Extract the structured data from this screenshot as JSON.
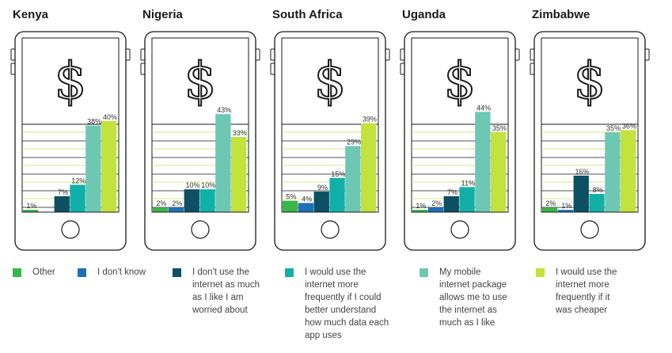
{
  "chart_data": {
    "type": "bar",
    "ylim": [
      0,
      50
    ],
    "categories": [
      "Other",
      "I don't know",
      "I don't use the internet as much as I like I am worried about",
      "I would use the internet more frequently if I could better understand how much data each app uses",
      "My mobile internet package allows me to use the internet as much as I like",
      "I would use the internet more frequently if it was cheaper"
    ],
    "category_colors": [
      "#39b54a",
      "#1f6fb7",
      "#0d4f63",
      "#10b0a9",
      "#6dc8b3",
      "#c3e23c"
    ],
    "panels": [
      {
        "country": "Kenya",
        "values": [
          1,
          0,
          7,
          12,
          38,
          40
        ],
        "labels": [
          "1%",
          "",
          "7%",
          "12%",
          "38%",
          "40%"
        ]
      },
      {
        "country": "Nigeria",
        "values": [
          2,
          2,
          10,
          10,
          43,
          33
        ],
        "labels": [
          "2%",
          "2%",
          "10%",
          "10%",
          "43%",
          "33%"
        ]
      },
      {
        "country": "South Africa",
        "values": [
          5,
          4,
          9,
          15,
          29,
          39
        ],
        "labels": [
          "5%",
          "4%",
          "9%",
          "15%",
          "29%",
          "39%"
        ]
      },
      {
        "country": "Uganda",
        "values": [
          1,
          2,
          7,
          11,
          44,
          35
        ],
        "labels": [
          "1%",
          "2%",
          "7%",
          "11%",
          "44%",
          "35%"
        ]
      },
      {
        "country": "Zimbabwe",
        "values": [
          2,
          1,
          16,
          8,
          35,
          36
        ],
        "labels": [
          "2%",
          "1%",
          "16%",
          "8%",
          "35%",
          "36%"
        ]
      }
    ],
    "legend": {
      "placement": "bottom",
      "items": [
        {
          "label_lines": [
            "Other"
          ]
        },
        {
          "label_lines": [
            "I don't know"
          ]
        },
        {
          "label_lines": [
            "I don't use the",
            "internet as much",
            "as I like I am",
            "worried about"
          ]
        },
        {
          "label_lines": [
            "I would use the",
            "internet more",
            "frequently if I could",
            "better understand",
            "how much data each",
            "app uses"
          ]
        },
        {
          "label_lines": [
            "My mobile",
            "internet package",
            "allows me to use",
            "the internet as",
            "much as I like"
          ]
        },
        {
          "label_lines": [
            "I would use the",
            "internet more",
            "frequently if it",
            "was cheaper"
          ]
        }
      ]
    },
    "icon": "dollar-sign-icon",
    "frame_icon": "smartphone-icon"
  }
}
